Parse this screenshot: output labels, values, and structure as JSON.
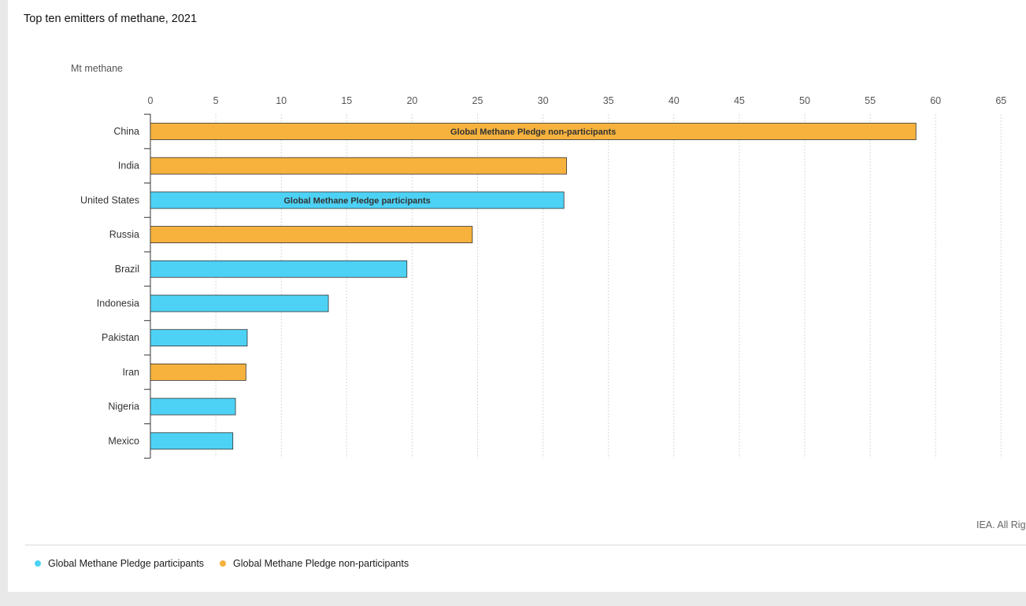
{
  "chart_title": "Top ten emitters of methane, 2021",
  "credit": "IEA. All Righ",
  "colors": {
    "participants": "#4dd2f5",
    "non_participants": "#f6b23d",
    "grid": "#d8d8d8",
    "axis": "#333333"
  },
  "chart_data": {
    "type": "bar",
    "orientation": "horizontal",
    "title": "Top ten emitters of methane, 2021",
    "xlabel": "Mt methane",
    "xlim": [
      0,
      65
    ],
    "xticks": [
      0,
      5,
      10,
      15,
      20,
      25,
      30,
      35,
      40,
      45,
      50,
      55,
      60,
      65
    ],
    "grid": true,
    "legend_position": "bottom-left",
    "categories": [
      "China",
      "India",
      "United States",
      "Russia",
      "Brazil",
      "Indonesia",
      "Pakistan",
      "Iran",
      "Nigeria",
      "Mexico"
    ],
    "values": [
      58.5,
      31.8,
      31.6,
      24.6,
      19.6,
      13.6,
      7.4,
      7.3,
      6.5,
      6.3
    ],
    "groups": [
      "non-participant",
      "non-participant",
      "participant",
      "non-participant",
      "participant",
      "participant",
      "participant",
      "non-participant",
      "participant",
      "participant"
    ],
    "series": [
      {
        "name": "Global Methane Pledge participants",
        "key": "participant",
        "color": "#4dd2f5"
      },
      {
        "name": "Global Methane Pledge non-participants",
        "key": "non-participant",
        "color": "#f6b23d"
      }
    ],
    "annotations": [
      {
        "category": "China",
        "text": "Global Methane Pledge non-participants"
      },
      {
        "category": "United States",
        "text": "Global Methane Pledge participants"
      }
    ]
  },
  "legend": [
    {
      "label": "Global Methane Pledge participants",
      "color": "#4dd2f5"
    },
    {
      "label": "Global Methane Pledge non-participants",
      "color": "#f6b23d"
    }
  ]
}
